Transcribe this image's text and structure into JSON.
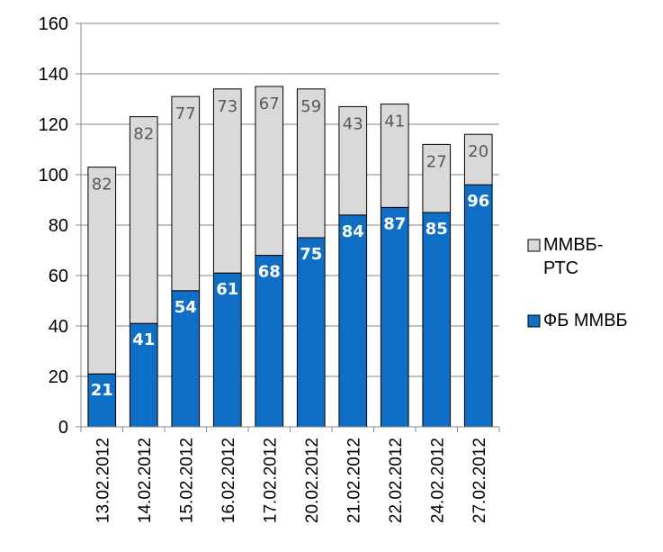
{
  "chart_data": {
    "type": "bar",
    "stacked": true,
    "categories": [
      "13.02.2012",
      "14.02.2012",
      "15.02.2012",
      "16.02.2012",
      "17.02.2012",
      "20.02.2012",
      "21.02.2012",
      "22.02.2012",
      "24.02.2012",
      "27.02.2012"
    ],
    "series": [
      {
        "name": "ФБ ММВБ",
        "values": [
          21,
          41,
          54,
          61,
          68,
          75,
          84,
          87,
          85,
          96
        ],
        "color": "#0f6fc6"
      },
      {
        "name": "ММВБ-РТС",
        "values": [
          82,
          82,
          77,
          73,
          67,
          59,
          43,
          41,
          27,
          20
        ],
        "color": "#d9d9d9"
      }
    ],
    "ylim": [
      0,
      160
    ],
    "yticks": [
      "0",
      "20",
      "40",
      "60",
      "80",
      "100",
      "120",
      "140",
      "160"
    ],
    "grid": true,
    "legend": "right",
    "legend_entries": [
      {
        "lines": [
          "ММВБ-",
          "РТС"
        ],
        "series": 1
      },
      {
        "lines": [
          "ФБ ММВБ"
        ],
        "series": 0
      }
    ]
  }
}
